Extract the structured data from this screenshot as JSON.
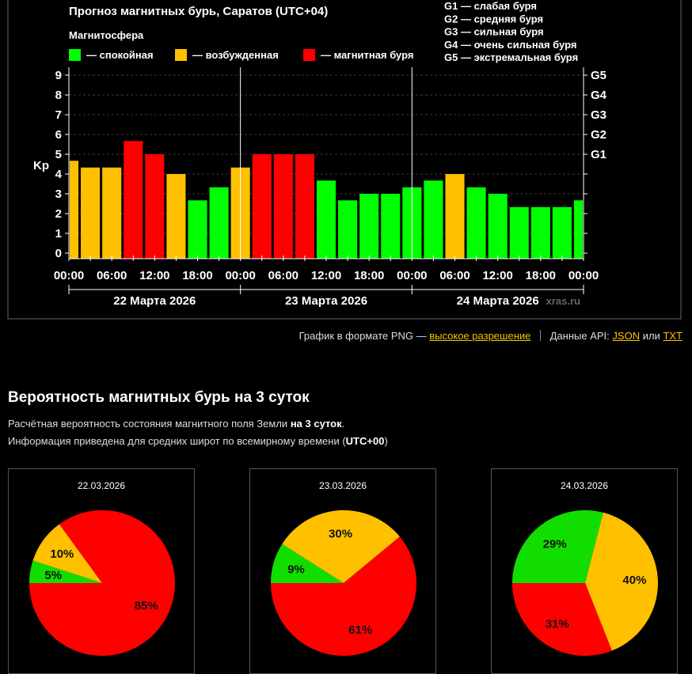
{
  "chart": {
    "title": "Прогноз магнитных бурь, Саратов (UTC+04)",
    "legend_title": "Магнитосфера",
    "legend": [
      {
        "label": "— спокойная",
        "color": "#00ff00"
      },
      {
        "label": "— возбужденная",
        "color": "#ffc000"
      },
      {
        "label": "— магнитная буря",
        "color": "#ff0000"
      }
    ],
    "g_scale": [
      "G1 — слабая буря",
      "G2 — средняя буря",
      "G3 — сильная буря",
      "G4 — очень сильная буря",
      "G5 — экстремальная буря"
    ],
    "watermark": "xras.ru"
  },
  "chart_data": [
    {
      "type": "bar",
      "ylabel": "Kp",
      "ylim": [
        0,
        9
      ],
      "y_ticks": [
        "0",
        "1",
        "2",
        "3",
        "4",
        "5",
        "6",
        "7",
        "8",
        "9"
      ],
      "right_ticks": [
        {
          "label": "G1",
          "kp": 5
        },
        {
          "label": "G2",
          "kp": 6
        },
        {
          "label": "G3",
          "kp": 7
        },
        {
          "label": "G4",
          "kp": 8
        },
        {
          "label": "G5",
          "kp": 9
        }
      ],
      "x_ticks": [
        "00:00",
        "06:00",
        "12:00",
        "18:00",
        "00:00",
        "06:00",
        "12:00",
        "18:00",
        "00:00",
        "06:00",
        "12:00",
        "18:00",
        "00:00"
      ],
      "days": [
        "22 Марта 2026",
        "23 Марта 2026",
        "24 Марта 2026"
      ],
      "values": [
        4.67,
        4.33,
        4.33,
        5.67,
        5.0,
        4.0,
        2.67,
        3.33,
        4.33,
        5.0,
        5.0,
        5.0,
        3.67,
        2.67,
        3.0,
        3.0,
        3.33,
        3.67,
        4.0,
        3.33,
        3.0,
        2.33,
        2.33,
        2.33,
        2.67
      ],
      "colors": {
        "quiet": "#00ff00",
        "active": "#ffc000",
        "storm": "#ff0000"
      },
      "grid": true
    },
    {
      "type": "pie",
      "title": "22.03.2026",
      "slices": [
        {
          "name": "спокойная",
          "value": 5,
          "color": "#11dd00"
        },
        {
          "name": "возбужденная",
          "value": 10,
          "color": "#ffc000"
        },
        {
          "name": "магнитная буря",
          "value": 85,
          "color": "#ff0000"
        }
      ]
    },
    {
      "type": "pie",
      "title": "23.03.2026",
      "slices": [
        {
          "name": "спокойная",
          "value": 9,
          "color": "#11dd00"
        },
        {
          "name": "возбужденная",
          "value": 30,
          "color": "#ffc000"
        },
        {
          "name": "магнитная буря",
          "value": 61,
          "color": "#ff0000"
        }
      ]
    },
    {
      "type": "pie",
      "title": "24.03.2026",
      "slices": [
        {
          "name": "спокойная",
          "value": 29,
          "color": "#11dd00"
        },
        {
          "name": "возбужденная",
          "value": 40,
          "color": "#ffc000"
        },
        {
          "name": "магнитная буря",
          "value": 31,
          "color": "#ff0000"
        }
      ]
    }
  ],
  "links": {
    "png_text": "График в формате PNG —",
    "png_link": "высокое разрешение",
    "api_text": "Данные API:",
    "json_link": "JSON",
    "or_text": "или",
    "txt_link": "TXT"
  },
  "section": {
    "title": "Вероятность магнитных бурь на 3 суток",
    "desc1_prefix": "Расчётная вероятность состояния магнитного поля Земли",
    "desc1_bold": "на 3 суток",
    "desc1_suffix": ".",
    "desc2_prefix": "Информация приведена для средних широт по всемирному времени (",
    "desc2_bold": "UTC+00",
    "desc2_suffix": ")"
  }
}
